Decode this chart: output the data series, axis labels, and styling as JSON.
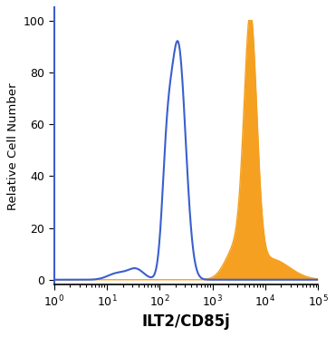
{
  "title": "",
  "xlabel": "ILT2/CD85j",
  "ylabel": "Relative Cell Number",
  "xlim": [
    1.0,
    100000.0
  ],
  "ylim": [
    -2,
    105
  ],
  "yticks": [
    0,
    20,
    40,
    60,
    80,
    100
  ],
  "blue_color": "#3a5fcd",
  "orange_color": "#f5a020",
  "orange_fill": "#f5a020",
  "background_color": "#ffffff",
  "xlabel_fontsize": 12,
  "ylabel_fontsize": 9.5,
  "tick_fontsize": 9
}
